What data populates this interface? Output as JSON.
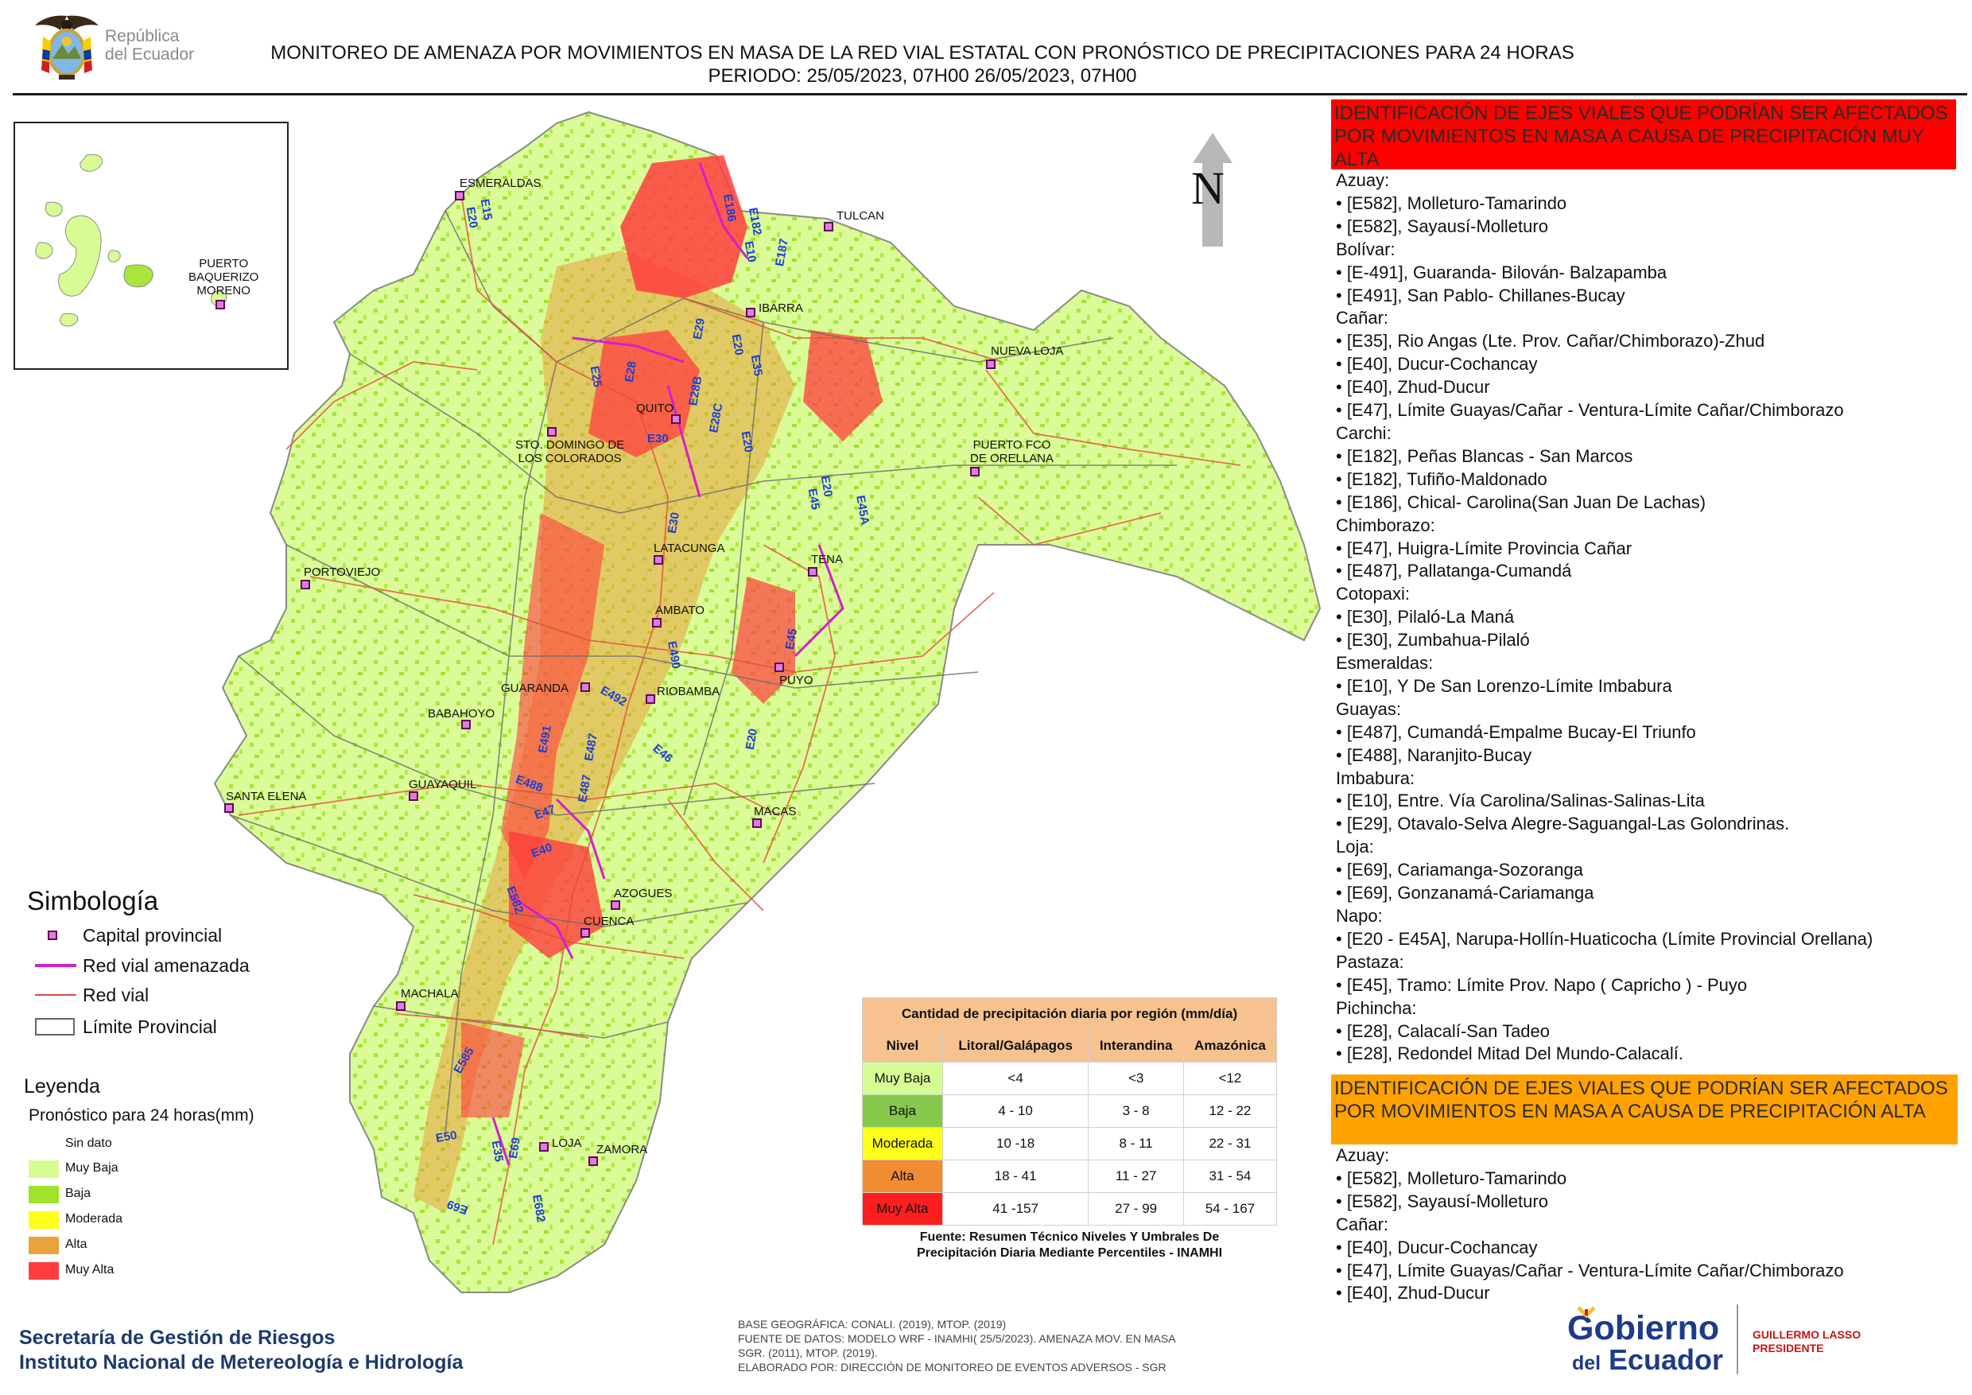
{
  "header": {
    "republic": "República\ndel Ecuador",
    "title_line1": "MONITOREO DE AMENAZA POR MOVIMIENTOS EN MASA DE LA RED VIAL  ESTATAL  CON PRONÓSTICO  DE  PRECIPITACIONES PARA 24 HORAS",
    "title_line2": "PERIODO: 25/05/2023, 07H00 26/05/2023, 07H00"
  },
  "map": {
    "north": "N",
    "inset_label": "PUERTO\nBAQUERIZO\nMORENO",
    "cities": [
      "ESMERALDAS",
      "TULCAN",
      "IBARRA",
      "NUEVA LOJA",
      "QUITO",
      "STO. DOMINGO DE\nLOS COLORADOS",
      "PUERTO FCO\nDE ORELLANA",
      "TENA",
      "LATACUNGA",
      "PORTOVIEJO",
      "AMBATO",
      "GUARANDA",
      "RIOBAMBA",
      "PUYO",
      "BABAHOYO",
      "SANTA ELENA",
      "GUAYAQUIL",
      "MACAS",
      "AZOGUES",
      "CUENCA",
      "MACHALA",
      "LOJA",
      "ZAMORA"
    ],
    "roads": [
      "E15",
      "E20",
      "E186",
      "E182",
      "E10",
      "E187",
      "E29",
      "E28",
      "E35",
      "E28B",
      "E25",
      "E28C",
      "E20",
      "E30",
      "E20",
      "E45",
      "E45A",
      "E20",
      "E20",
      "E30",
      "E45",
      "E490",
      "E492",
      "E491",
      "E487",
      "E46",
      "E488",
      "E487",
      "E47",
      "E40",
      "E582",
      "E585",
      "E50",
      "E35",
      "E69",
      "E69",
      "E682"
    ]
  },
  "legend": {
    "simbologia_title": "Simbología",
    "simbologia": [
      "Capital provincial",
      "Red vial amenazada",
      "Red vial",
      "Límite Provincial"
    ],
    "leyenda_title": "Leyenda",
    "leyenda_sub": "Pronóstico para 24 horas(mm)",
    "levels": [
      {
        "label": "Sin dato",
        "color": "#ffffff"
      },
      {
        "label": "Muy Baja",
        "color": "#d8fc94"
      },
      {
        "label": "Baja",
        "color": "#9fe32c"
      },
      {
        "label": "Moderada",
        "color": "#ffff1a"
      },
      {
        "label": "Alta",
        "color": "#e8a33c"
      },
      {
        "label": "Muy Alta",
        "color": "#ff3d3d"
      }
    ]
  },
  "agency": "Secretaría de Gestión de Riesgos\nInstituto Nacional de Metereología e Hidrología",
  "precip_table": {
    "caption": "Cantidad de precipitación diaria por región (mm/día)",
    "headers": [
      "Nivel",
      "Litoral/Galápagos",
      "Interandina",
      "Amazónica"
    ],
    "rows": [
      {
        "nivel": "Muy Baja",
        "color": "#d8fc94",
        "litoral": "<4",
        "interandina": "<3",
        "amazonica": "<12"
      },
      {
        "nivel": "Baja",
        "color": "#86c84c",
        "litoral": "4 - 10",
        "interandina": "3 - 8",
        "amazonica": "12 - 22"
      },
      {
        "nivel": "Moderada",
        "color": "#ffff1a",
        "litoral": "10 -18",
        "interandina": "8 - 11",
        "amazonica": "22 - 31"
      },
      {
        "nivel": "Alta",
        "color": "#f08c32",
        "litoral": "18 - 41",
        "interandina": "11 - 27",
        "amazonica": "31 - 54"
      },
      {
        "nivel": "Muy Alta",
        "color": "#ff1e1e",
        "litoral": "41 -157",
        "interandina": "27 - 99",
        "amazonica": "54 - 167"
      }
    ],
    "note": "Fuente: Resumen Técnico Niveles Y Umbrales De\nPrecipitación Diaria Mediante Percentiles - INAMHI"
  },
  "credits": "BASE GEOGRÁFICA: CONALI. (2019), MTOP. (2019)\nFUENTE DE DATOS: MODELO WRF - INAMHI( 25/5/2023).  AMENAZA MOV. EN MASA\nSGR. (2011), MTOP. (2019).\nELABORADO POR: DIRECCIÓN DE MONITOREO DE EVENTOS ADVERSOS - SGR",
  "panel_muy_alta": {
    "title": "IDENTIFICACIÓN DE EJES VIALES QUE PODRÍAN SER AFECTADOS POR MOVIMIENTOS EN MASA A CAUSA DE PRECIPITACIÓN MUY ALTA",
    "lines": [
      {
        "t": "p",
        "v": "Azuay:"
      },
      {
        "t": "i",
        "v": "• [E582], Molleturo-Tamarindo"
      },
      {
        "t": "i",
        "v": "• [E582], Sayausí-Molleturo"
      },
      {
        "t": "p",
        "v": "Bolívar:"
      },
      {
        "t": "i",
        "v": "• [E-491], Guaranda- Bilován- Balzapamba"
      },
      {
        "t": "i",
        "v": "• [E491], San Pablo- Chillanes-Bucay"
      },
      {
        "t": "p",
        "v": "Cañar:"
      },
      {
        "t": "i",
        "v": "• [E35], Rio Angas (Lte. Prov. Cañar/Chimborazo)-Zhud"
      },
      {
        "t": "i",
        "v": "• [E40], Ducur-Cochancay"
      },
      {
        "t": "i",
        "v": "• [E40], Zhud-Ducur"
      },
      {
        "t": "i",
        "v": "• [E47], Límite Guayas/Cañar - Ventura-Límite Cañar/Chimborazo"
      },
      {
        "t": "p",
        "v": "Carchi:"
      },
      {
        "t": "i",
        "v": "• [E182], Peñas Blancas - San Marcos"
      },
      {
        "t": "i",
        "v": "• [E182], Tufiño-Maldonado"
      },
      {
        "t": "i",
        "v": "• [E186], Chical- Carolina(San Juan De Lachas)"
      },
      {
        "t": "p",
        "v": "Chimborazo:"
      },
      {
        "t": "i",
        "v": "• [E47], Huigra-Límite Provincia Cañar"
      },
      {
        "t": "i",
        "v": "• [E487], Pallatanga-Cumandá"
      },
      {
        "t": "p",
        "v": "Cotopaxi:"
      },
      {
        "t": "i",
        "v": "• [E30], Pilaló-La Maná"
      },
      {
        "t": "i",
        "v": "• [E30], Zumbahua-Pilaló"
      },
      {
        "t": "p",
        "v": "Esmeraldas:"
      },
      {
        "t": "i",
        "v": "• [E10], Y De San Lorenzo-Límite Imbabura"
      },
      {
        "t": "p",
        "v": "Guayas:"
      },
      {
        "t": "i",
        "v": "• [E487], Cumandá-Empalme Bucay-El Triunfo"
      },
      {
        "t": "i",
        "v": "• [E488], Naranjito-Bucay"
      },
      {
        "t": "p",
        "v": "Imbabura:"
      },
      {
        "t": "i",
        "v": "• [E10], Entre. Vía Carolina/Salinas-Salinas-Lita"
      },
      {
        "t": "i",
        "v": "• [E29], Otavalo-Selva Alegre-Saguangal-Las Golondrinas."
      },
      {
        "t": "p",
        "v": "Loja:"
      },
      {
        "t": "i",
        "v": "• [E69], Cariamanga-Sozoranga"
      },
      {
        "t": "i",
        "v": "• [E69], Gonzanamá-Cariamanga"
      },
      {
        "t": "p",
        "v": "Napo:"
      },
      {
        "t": "i",
        "v": "• [E20 - E45A], Narupa-Hollín-Huaticocha (Límite Provincial Orellana)"
      },
      {
        "t": "p",
        "v": "Pastaza:"
      },
      {
        "t": "i",
        "v": "• [E45], Tramo: Límite Prov. Napo ( Capricho ) - Puyo"
      },
      {
        "t": "p",
        "v": "Pichincha:"
      },
      {
        "t": "i",
        "v": "• [E28], Calacalí-San Tadeo"
      },
      {
        "t": "i",
        "v": "• [E28], Redondel Mitad Del Mundo-Calacalí."
      }
    ]
  },
  "panel_alta": {
    "title": "IDENTIFICACIÓN DE EJES VIALES QUE PODRÍAN SER AFECTADOS POR MOVIMIENTOS EN MASA A CAUSA DE PRECIPITACIÓN  ALTA",
    "lines": [
      {
        "t": "p",
        "v": "Azuay:"
      },
      {
        "t": "i",
        "v": "• [E582], Molleturo-Tamarindo"
      },
      {
        "t": "i",
        "v": "• [E582], Sayausí-Molleturo"
      },
      {
        "t": "p",
        "v": "Cañar:"
      },
      {
        "t": "i",
        "v": "• [E40], Ducur-Cochancay"
      },
      {
        "t": "i",
        "v": "• [E47], Límite Guayas/Cañar - Ventura-Límite Cañar/Chimborazo"
      },
      {
        "t": "i",
        "v": "• [E40], Zhud-Ducur"
      }
    ]
  },
  "logo": {
    "gobierno": "Gobierno",
    "del": "del",
    "ecuador": "Ecuador",
    "president": "GUILLERMO LASSO\nPRESIDENTE"
  }
}
